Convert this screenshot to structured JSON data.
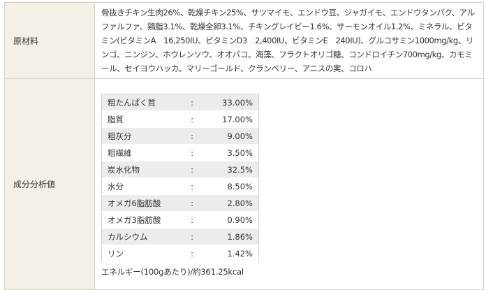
{
  "ingredients": {
    "label": "原材料",
    "text": "骨抜きチキン生肉26%、乾燥チキン25%、サツマイモ、エンドウ豆、ジャガイモ、エンドウタンパク、アルファルファ、鶏脂3.1%、乾燥全卵3.1%、チキングレイビー1.6%、サーモンオイル1.2%、ミネラル、ビタミン(ビタミンA　16,250IU、ビタミンD3　2,400IU、ビタミンE　240IU)、グルコサミン1000mg/kg、リンゴ、ニンジン、ホウレンソウ、オオバコ、海藻、フラクトオリゴ糖、コンドロイチン700mg/kg、カモミール、セイヨウハッカ、マリーゴールド、クランベリー、アニスの実、コロハ"
  },
  "analysis": {
    "label": "成分分析値",
    "rows": [
      {
        "name": "粗たんぱく質",
        "sep": ":",
        "value": "33.00%"
      },
      {
        "name": "脂質",
        "sep": ":",
        "value": "17.00%"
      },
      {
        "name": "粗灰分",
        "sep": ":",
        "value": "9.00%"
      },
      {
        "name": "粗繊維",
        "sep": ":",
        "value": "3.50%"
      },
      {
        "name": "炭水化物",
        "sep": ":",
        "value": "32.5%"
      },
      {
        "name": "水分",
        "sep": ":",
        "value": "8.50%"
      },
      {
        "name": "オメガ6脂肪酸",
        "sep": ":",
        "value": "2.80%"
      },
      {
        "name": "オメガ3脂肪酸",
        "sep": ":",
        "value": "0.90%"
      },
      {
        "name": "カルシウム",
        "sep": ":",
        "value": "1.86%"
      },
      {
        "name": "リン",
        "sep": ":",
        "value": "1.42%"
      }
    ],
    "energy": "エネルギー(100gあたり)/約361.25kcal"
  }
}
